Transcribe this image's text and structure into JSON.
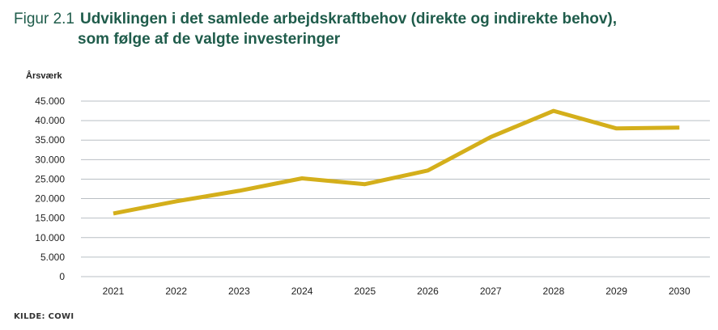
{
  "header": {
    "figure_label": "Figur 2.1",
    "title_line1": "Udviklingen i det samlede arbejdskraftbehov (direkte og indirekte behov),",
    "title_line2": "som følge af de valgte investeringer"
  },
  "source": "KILDE: COWI",
  "colors": {
    "line": "#d4af1b",
    "grid": "#b9bfc4",
    "title": "#1f5c4b"
  },
  "chart_data": {
    "type": "line",
    "title": "Udviklingen i det samlede arbejdskraftbehov (direkte og indirekte behov), som følge af de valgte investeringer",
    "ylabel": "Årsværk",
    "xlabel": "",
    "ylim": [
      0,
      45000
    ],
    "yticks": [
      0,
      5000,
      10000,
      15000,
      20000,
      25000,
      30000,
      35000,
      40000,
      45000
    ],
    "ytick_labels": [
      "0",
      "5.000",
      "10.000",
      "15.000",
      "20.000",
      "25.000",
      "30.000",
      "35.000",
      "40.000",
      "45.000"
    ],
    "categories": [
      "2021",
      "2022",
      "2023",
      "2024",
      "2025",
      "2026",
      "2027",
      "2028",
      "2029",
      "2030"
    ],
    "series": [
      {
        "name": "Årsværk",
        "values": [
          16200,
          19300,
          22000,
          25200,
          23700,
          27200,
          35800,
          42500,
          38000,
          38200
        ]
      }
    ],
    "grid": true,
    "legend": "none"
  }
}
